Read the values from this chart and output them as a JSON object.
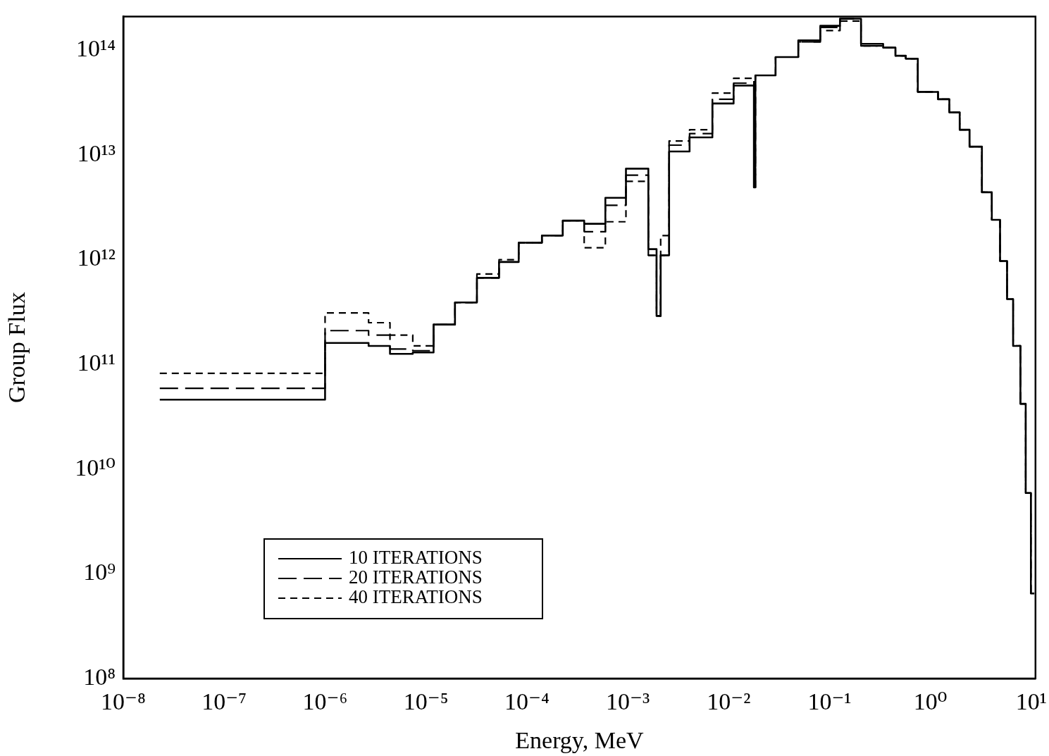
{
  "chart_data": {
    "type": "step",
    "xlabel": "Energy, MeV",
    "ylabel": "Group Flux",
    "x": [
      2.3e-08,
      1e-06,
      2.7e-06,
      4.4e-06,
      7.4e-06,
      1.19e-05,
      1.94e-05,
      3.2e-05,
      5.3e-05,
      8.3e-05,
      0.000141,
      0.000227,
      0.00037,
      0.0006,
      0.00096,
      0.0016,
      0.00193,
      0.00212,
      0.00257,
      0.0041,
      0.0069,
      0.0112,
      0.0178,
      0.0184,
      0.0292,
      0.049,
      0.081,
      0.127,
      0.205,
      0.34,
      0.45,
      0.57,
      0.75,
      1.19,
      1.54,
      1.95,
      2.44,
      3.24,
      4.06,
      4.9,
      5.75,
      6.6,
      7.8,
      8.8,
      9.9,
      10.7
    ],
    "series": [
      {
        "name": "10 ITERATIONS",
        "color": "#000000",
        "line_style": "solid",
        "values": [
          46000000000.0,
          160000000000.0,
          150000000000.0,
          126000000000.0,
          130000000000.0,
          240000000000.0,
          390000000000.0,
          670000000000.0,
          950000000000.0,
          1450000000000.0,
          1700000000000.0,
          2360000000000.0,
          2200000000000.0,
          3900000000000.0,
          7400000000000.0,
          1260000000000.0,
          290000000000.0,
          1100000000000.0,
          10800000000000.0,
          14700000000000.0,
          31000000000000.0,
          46000000000000.0,
          4900000000000.0,
          57500000000000.0,
          86000000000000.0,
          124000000000000.0,
          171000000000000.0,
          200000000000000.0,
          115000000000000.0,
          106000000000000.0,
          88500000000000.0,
          83000000000000.0,
          40000000000000.0,
          34000000000000.0,
          25500000000000.0,
          17400000000000.0,
          12000000000000.0,
          4400000000000.0,
          2400000000000.0,
          970000000000.0,
          420000000000.0,
          150000000000.0,
          42000000000.0,
          5900000000.0,
          650000000.0,
          650000000.0
        ]
      },
      {
        "name": "20 ITERATIONS",
        "color": "#000000",
        "line_style": "dashed",
        "values": [
          59000000000.0,
          210000000000.0,
          190000000000.0,
          140000000000.0,
          135000000000.0,
          240000000000.0,
          390000000000.0,
          670000000000.0,
          950000000000.0,
          1450000000000.0,
          1700000000000.0,
          2360000000000.0,
          1850000000000.0,
          3300000000000.0,
          6400000000000.0,
          1100000000000.0,
          290000000000.0,
          1100000000000.0,
          12400000000000.0,
          16000000000000.0,
          34000000000000.0,
          48500000000000.0,
          4900000000000.0,
          57500000000000.0,
          86000000000000.0,
          120000000000000.0,
          165000000000000.0,
          200000000000000.0,
          110000000000000.0,
          106000000000000.0,
          88500000000000.0,
          83000000000000.0,
          40000000000000.0,
          34000000000000.0,
          25500000000000.0,
          17400000000000.0,
          12000000000000.0,
          4400000000000.0,
          2400000000000.0,
          970000000000.0,
          420000000000.0,
          150000000000.0,
          42000000000.0,
          5900000000.0,
          650000000.0,
          650000000.0
        ]
      },
      {
        "name": "40 ITERATIONS",
        "color": "#000000",
        "line_style": "dotted",
        "values": [
          82000000000.0,
          310000000000.0,
          250000000000.0,
          190000000000.0,
          150000000000.0,
          240000000000.0,
          390000000000.0,
          730000000000.0,
          1000000000000.0,
          1450000000000.0,
          1700000000000.0,
          2360000000000.0,
          1300000000000.0,
          2300000000000.0,
          5600000000000.0,
          1100000000000.0,
          290000000000.0,
          1700000000000.0,
          13600000000000.0,
          17400000000000.0,
          39000000000000.0,
          54000000000000.0,
          4900000000000.0,
          57500000000000.0,
          86000000000000.0,
          120000000000000.0,
          154000000000000.0,
          190000000000000.0,
          110000000000000.0,
          106000000000000.0,
          88500000000000.0,
          83000000000000.0,
          40000000000000.0,
          34000000000000.0,
          25500000000000.0,
          17400000000000.0,
          12000000000000.0,
          4400000000000.0,
          2400000000000.0,
          970000000000.0,
          420000000000.0,
          150000000000.0,
          42000000000.0,
          5900000000.0,
          650000000.0,
          650000000.0
        ]
      }
    ],
    "log": "xy",
    "xlim": [
      1e-08,
      11
    ],
    "ylim": [
      100000000.0,
      210000000000000.0
    ],
    "xticks": [
      {
        "value": 1e-08,
        "label": "10⁻⁸"
      },
      {
        "value": 1e-07,
        "label": "10⁻⁷"
      },
      {
        "value": 1e-06,
        "label": "10⁻⁶"
      },
      {
        "value": 1e-05,
        "label": "10⁻⁵"
      },
      {
        "value": 0.0001,
        "label": "10⁻⁴"
      },
      {
        "value": 0.001,
        "label": "10⁻³"
      },
      {
        "value": 0.01,
        "label": "10⁻²"
      },
      {
        "value": 0.1,
        "label": "10⁻¹"
      },
      {
        "value": 1,
        "label": "10⁰"
      },
      {
        "value": 10,
        "label": "10¹"
      }
    ],
    "yticks": [
      {
        "value": 100000000.0,
        "label": "10⁸"
      },
      {
        "value": 1000000000.0,
        "label": "10⁹"
      },
      {
        "value": 10000000000.0,
        "label": "10¹⁰"
      },
      {
        "value": 100000000000.0,
        "label": "10¹¹"
      },
      {
        "value": 1000000000000.0,
        "label": "10¹²"
      },
      {
        "value": 10000000000000.0,
        "label": "10¹³"
      },
      {
        "value": 100000000000000.0,
        "label": "10¹⁴"
      }
    ],
    "grid": false,
    "legend": "bottom left",
    "marker": "none"
  }
}
